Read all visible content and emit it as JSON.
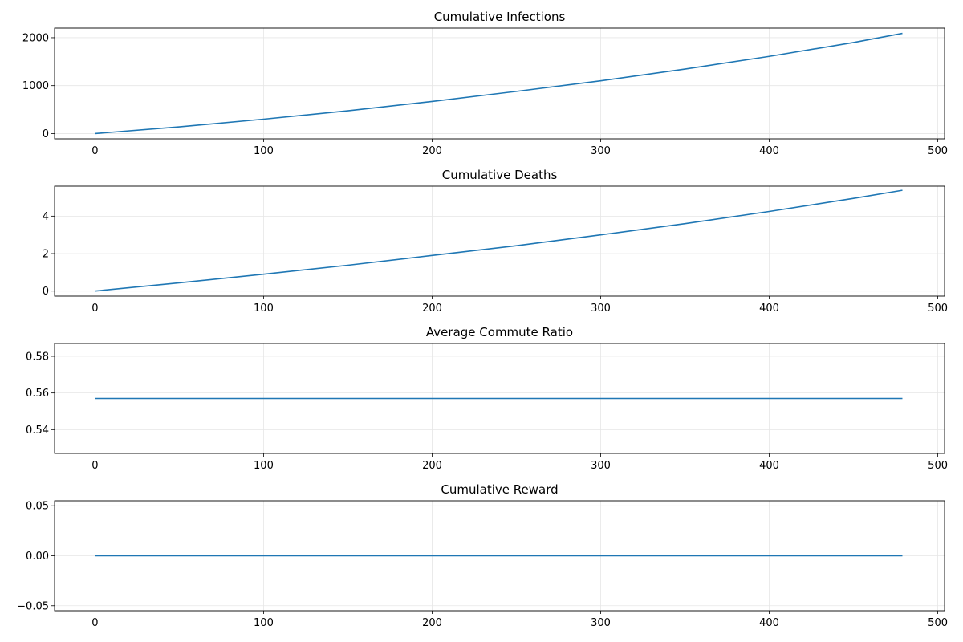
{
  "chart_data": [
    {
      "type": "line",
      "title": "Cumulative Infections",
      "xlim": [
        -24,
        504
      ],
      "ylim": [
        -110,
        2200
      ],
      "xticks": [
        0,
        100,
        200,
        300,
        400,
        500
      ],
      "yticks": [
        0,
        1000,
        2000
      ],
      "ytick_decimals": 0,
      "grid": true,
      "series": [
        {
          "color": "#1f77b4",
          "x": [
            0,
            50,
            100,
            150,
            200,
            250,
            300,
            350,
            400,
            450,
            479
          ],
          "y": [
            0,
            140,
            300,
            475,
            670,
            880,
            1100,
            1345,
            1610,
            1900,
            2090
          ]
        }
      ]
    },
    {
      "type": "line",
      "title": "Cumulative Deaths",
      "xlim": [
        -24,
        504
      ],
      "ylim": [
        -0.27,
        5.6
      ],
      "xticks": [
        0,
        100,
        200,
        300,
        400,
        500
      ],
      "yticks": [
        0,
        2,
        4
      ],
      "ytick_decimals": 0,
      "grid": true,
      "series": [
        {
          "color": "#1f77b4",
          "x": [
            0,
            50,
            100,
            150,
            200,
            250,
            300,
            350,
            400,
            450,
            479
          ],
          "y": [
            0,
            0.44,
            0.9,
            1.38,
            1.9,
            2.42,
            3.0,
            3.6,
            4.25,
            4.95,
            5.38
          ]
        }
      ]
    },
    {
      "type": "line",
      "title": "Average Commute Ratio",
      "xlim": [
        -24,
        504
      ],
      "ylim": [
        0.527,
        0.587
      ],
      "xticks": [
        0,
        100,
        200,
        300,
        400,
        500
      ],
      "yticks": [
        0.54,
        0.56,
        0.58
      ],
      "ytick_decimals": 2,
      "grid": true,
      "series": [
        {
          "color": "#1f77b4",
          "x": [
            0,
            479
          ],
          "y": [
            0.557,
            0.557
          ]
        }
      ]
    },
    {
      "type": "line",
      "title": "Cumulative Reward",
      "xlim": [
        -24,
        504
      ],
      "ylim": [
        -0.055,
        0.055
      ],
      "xticks": [
        0,
        100,
        200,
        300,
        400,
        500
      ],
      "yticks": [
        -0.05,
        0.0,
        0.05
      ],
      "ytick_decimals": 2,
      "grid": true,
      "series": [
        {
          "color": "#1f77b4",
          "x": [
            0,
            479
          ],
          "y": [
            0,
            0
          ]
        }
      ]
    }
  ]
}
